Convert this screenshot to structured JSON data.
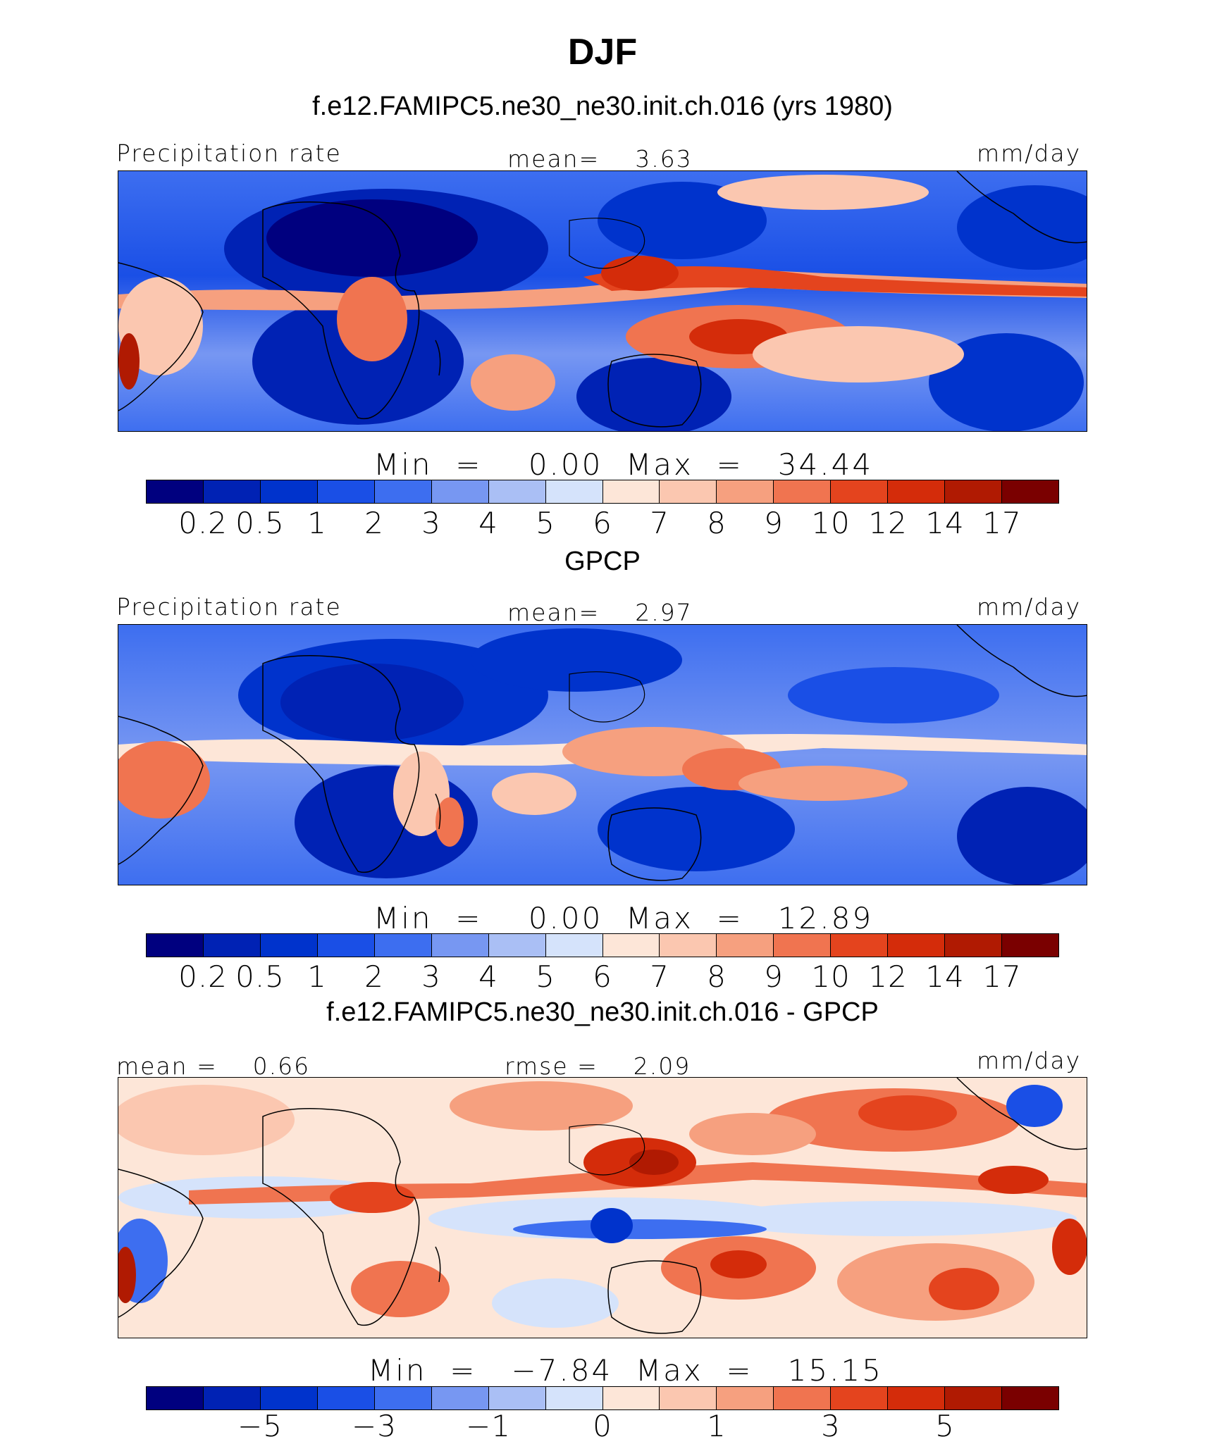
{
  "title": "DJF",
  "panels": [
    {
      "id": "model",
      "heading": "f.e12.FAMIPC5.ne30_ne30.init.ch.016 (yrs 1980)",
      "left_label": "Precipitation rate",
      "center_label": "mean=    3.63",
      "right_label": "mm/day",
      "minmax": "Min  =    0.00  Max  =   34.44",
      "colorbar_ticks": [
        "0.2",
        "0.5",
        "1",
        "2",
        "3",
        "4",
        "5",
        "6",
        "7",
        "8",
        "9",
        "10",
        "12",
        "14",
        "17"
      ]
    },
    {
      "id": "obs",
      "heading": "GPCP",
      "left_label": "Precipitation rate",
      "center_label": "mean=    2.97",
      "right_label": "mm/day",
      "minmax": "Min  =    0.00  Max  =   12.89",
      "colorbar_ticks": [
        "0.2",
        "0.5",
        "1",
        "2",
        "3",
        "4",
        "5",
        "6",
        "7",
        "8",
        "9",
        "10",
        "12",
        "14",
        "17"
      ]
    },
    {
      "id": "diff",
      "heading": "f.e12.FAMIPC5.ne30_ne30.init.ch.016 - GPCP",
      "left_label": "mean =    0.66",
      "center_label": "rmse =    2.09",
      "right_label": "mm/day",
      "minmax": "Min  =   −7.84  Max  =   15.15",
      "colorbar_ticks": [
        "−5",
        "−3",
        "−1",
        "0",
        "1",
        "3",
        "5"
      ]
    }
  ],
  "colors": {
    "precip_scale": [
      "#00007f",
      "#0022b4",
      "#0033cc",
      "#1a4fe6",
      "#3d6ef0",
      "#7797f2",
      "#aabff5",
      "#d5e3fb",
      "#fde6d8",
      "#fbc7b0",
      "#f6a07f",
      "#f07450",
      "#e4441e",
      "#d42c0a",
      "#b01a02",
      "#7a0000"
    ],
    "diff_scale": [
      "#00007f",
      "#0022b4",
      "#0033cc",
      "#1a4fe6",
      "#3d6ef0",
      "#7797f2",
      "#aabff5",
      "#d5e3fb",
      "#fde6d8",
      "#fbc7b0",
      "#f6a07f",
      "#f07450",
      "#e4441e",
      "#d42c0a",
      "#b01a02",
      "#7a0000"
    ]
  },
  "chart_data": [
    {
      "type": "heatmap",
      "title": "f.e12.FAMIPC5.ne30_ne30.init.ch.016 (yrs 1980)",
      "variable": "Precipitation rate",
      "units": "mm/day",
      "mean": 3.63,
      "min": 0.0,
      "max": 34.44,
      "levels": [
        0.2,
        0.5,
        1,
        2,
        3,
        4,
        5,
        6,
        7,
        8,
        9,
        10,
        12,
        14,
        17
      ]
    },
    {
      "type": "heatmap",
      "title": "GPCP",
      "variable": "Precipitation rate",
      "units": "mm/day",
      "mean": 2.97,
      "min": 0.0,
      "max": 12.89,
      "levels": [
        0.2,
        0.5,
        1,
        2,
        3,
        4,
        5,
        6,
        7,
        8,
        9,
        10,
        12,
        14,
        17
      ]
    },
    {
      "type": "heatmap",
      "title": "f.e12.FAMIPC5.ne30_ne30.init.ch.016 - GPCP",
      "units": "mm/day",
      "mean": 0.66,
      "rmse": 2.09,
      "min": -7.84,
      "max": 15.15,
      "levels": [
        -5,
        -3,
        -1,
        0,
        1,
        3,
        5
      ]
    }
  ]
}
